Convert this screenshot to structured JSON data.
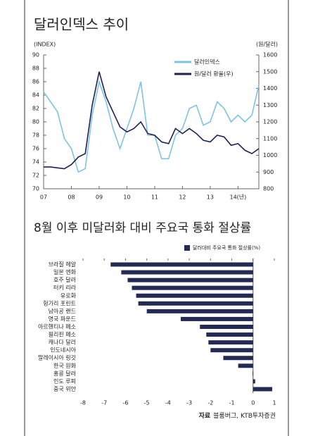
{
  "chart_data": [
    {
      "type": "line",
      "title": "달러인덱스 추이",
      "ylabel": "(INDEX)",
      "y2label": "(원/달러)",
      "x": [
        7,
        7.25,
        7.5,
        7.75,
        8,
        8.25,
        8.5,
        8.75,
        9,
        9.25,
        9.5,
        9.75,
        10,
        10.25,
        10.5,
        10.75,
        11,
        11.25,
        11.5,
        11.75,
        12,
        12.25,
        12.5,
        12.75,
        13,
        13.25,
        13.5,
        13.75,
        14,
        14.25,
        14.5,
        14.75
      ],
      "xlim": [
        7,
        14.75
      ],
      "xticks": [
        {
          "value": 7,
          "label": "07"
        },
        {
          "value": 8,
          "label": "08"
        },
        {
          "value": 9,
          "label": "09"
        },
        10,
        11,
        12,
        13,
        {
          "value": 14,
          "label": "14(년)"
        }
      ],
      "ylim": [
        70,
        90
      ],
      "yticks": [
        70,
        72,
        74,
        76,
        78,
        80,
        82,
        84,
        86,
        88,
        90
      ],
      "y2lim": [
        800,
        1600
      ],
      "y2ticks": [
        800,
        900,
        1000,
        1100,
        1200,
        1300,
        1400,
        1500,
        1600
      ],
      "series": [
        {
          "name": "달러인덱스",
          "color": "#7ec3e6",
          "values": [
            84.5,
            83,
            81.5,
            77.5,
            76,
            72.5,
            73,
            81,
            86,
            83,
            79,
            76,
            79,
            82,
            86,
            78,
            78,
            74.5,
            74.5,
            78,
            79,
            82,
            82.5,
            79.5,
            80,
            83,
            82,
            80,
            81,
            80,
            81,
            85.5
          ]
        },
        {
          "name": "원/달러 환율(우)",
          "color": "#1f2154",
          "axis": "y2",
          "values": [
            930,
            930,
            925,
            920,
            945,
            990,
            1010,
            1300,
            1500,
            1350,
            1260,
            1170,
            1140,
            1160,
            1200,
            1130,
            1120,
            1080,
            1070,
            1160,
            1130,
            1160,
            1130,
            1090,
            1080,
            1120,
            1110,
            1060,
            1070,
            1030,
            1010,
            1040
          ]
        }
      ]
    },
    {
      "type": "hbar",
      "title": "8월 이후 미달러화 대비 주요국 통화 절상률",
      "categories": [
        "브라질 헤알",
        "일본 엔화",
        "호주 달러",
        "터키 리라",
        "유로화",
        "헝가리 포린트",
        "남아공 랜드",
        "영국 파운드",
        "아르헨티나 페소",
        "필리핀 페소",
        "캐나다 달러",
        "인도네시아",
        "말레이시아 링깃",
        "한국 원화",
        "홍콩 달러",
        "인도 루피",
        "중국 위안"
      ],
      "series": [
        {
          "name": "달러대비 주요국 통화 절상률(%)",
          "color": "#232b55",
          "values": [
            -6.7,
            -6.2,
            -5.9,
            -5.7,
            -5.5,
            -5.4,
            -5.0,
            -3.4,
            -2.5,
            -2.2,
            -2.1,
            -2.0,
            -1.4,
            -0.7,
            -0.02,
            0.1,
            0.9
          ]
        }
      ],
      "xlim": [
        -8,
        1
      ],
      "xticks": [
        -8,
        -7,
        -6,
        -5,
        -4,
        -3,
        -2,
        -1,
        0,
        1
      ],
      "source": {
        "label": "자료",
        "text": "블룸버그, KTB투자증권"
      }
    }
  ]
}
